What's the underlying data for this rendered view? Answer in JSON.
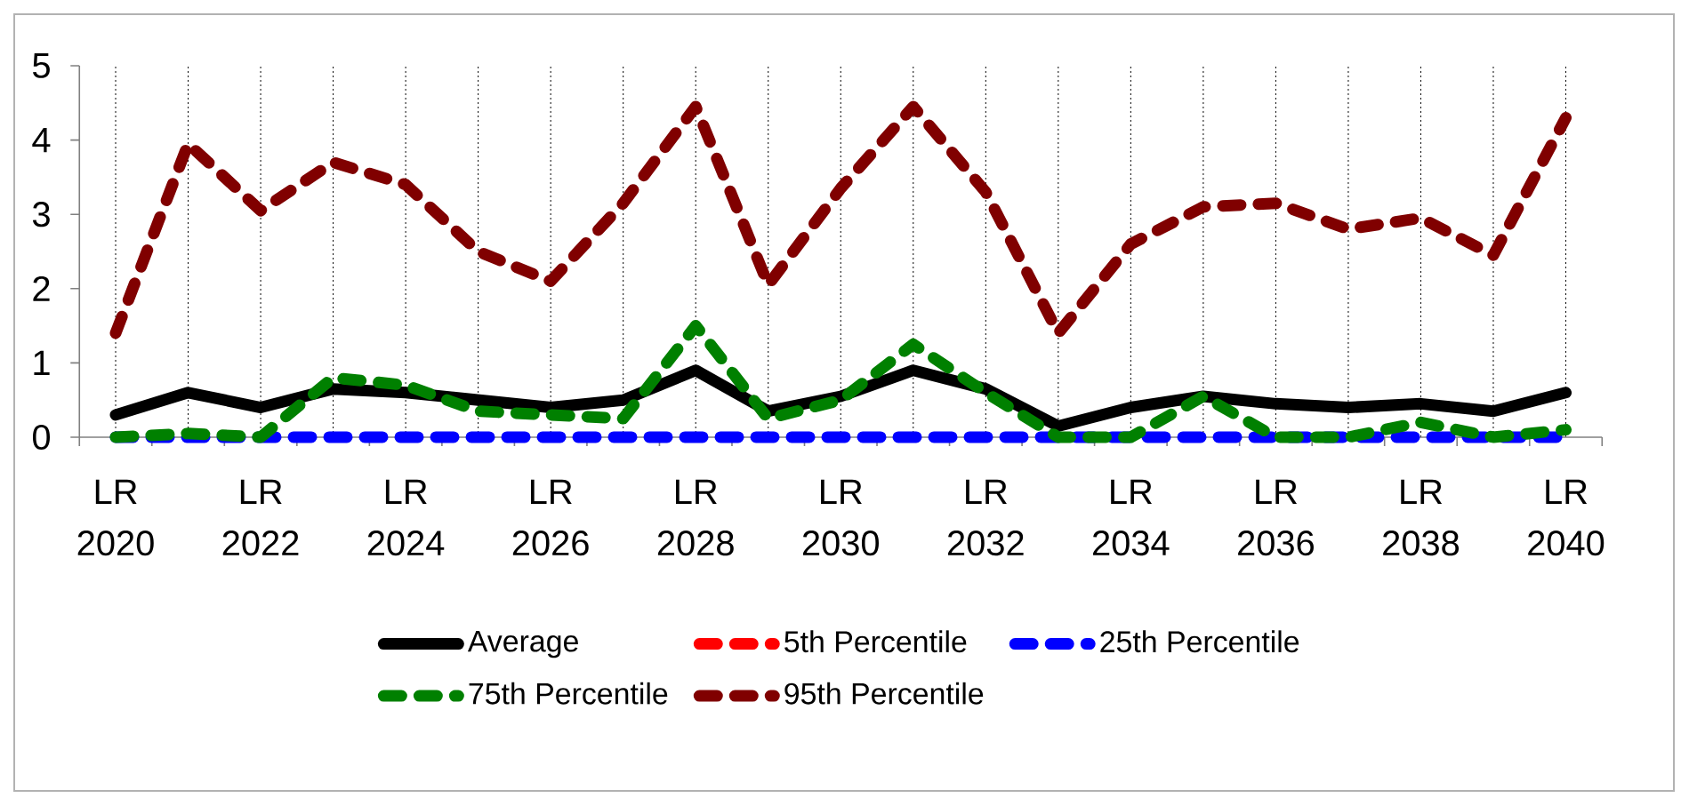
{
  "chart_data": {
    "type": "line",
    "categories": [
      "LR 2020",
      null,
      "LR 2022",
      null,
      "LR 2024",
      null,
      "LR 2026",
      null,
      "LR 2028",
      null,
      "LR 2030",
      null,
      "LR 2032",
      null,
      "LR 2034",
      null,
      "LR 2036",
      null,
      "LR 2038",
      null,
      "LR 2040"
    ],
    "ylim": [
      0,
      5
    ],
    "yticks": [
      0,
      1,
      2,
      3,
      4,
      5
    ],
    "grid": "x",
    "legend": "bottom",
    "marker": "none",
    "series": [
      {
        "name": "Average",
        "color": "#000000",
        "line_style": "solid",
        "values": [
          0.3,
          0.6,
          0.4,
          0.65,
          0.6,
          0.5,
          0.4,
          0.5,
          0.9,
          0.35,
          0.55,
          0.9,
          0.65,
          0.15,
          0.4,
          0.55,
          0.45,
          0.4,
          0.45,
          0.35,
          0.6
        ]
      },
      {
        "name": "5th Percentile",
        "color": "#ff0000",
        "line_style": "dashed",
        "values": [
          null,
          null,
          null,
          null,
          null,
          null,
          null,
          null,
          null,
          null,
          null,
          null,
          null,
          null,
          null,
          null,
          null,
          null,
          null,
          null,
          null
        ]
      },
      {
        "name": "25th Percentile",
        "color": "#0000ff",
        "line_style": "dashed",
        "values": [
          0,
          0,
          0,
          0,
          0,
          0,
          0,
          0,
          0,
          0,
          0,
          0,
          0,
          0,
          0,
          0,
          0,
          0,
          0,
          0,
          0
        ]
      },
      {
        "name": "75th Percentile",
        "color": "#008000",
        "line_style": "dashed",
        "values": [
          0,
          0.05,
          0,
          0.8,
          0.7,
          0.35,
          0.3,
          0.25,
          1.5,
          0.25,
          0.5,
          1.25,
          0.6,
          0,
          0,
          0.55,
          0,
          0,
          0.2,
          0,
          0.1
        ]
      },
      {
        "name": "95th Percentile",
        "color": "#800000",
        "line_style": "dashed",
        "values": [
          1.4,
          3.95,
          3.05,
          3.7,
          3.4,
          2.5,
          2.1,
          3.15,
          4.45,
          2.05,
          3.35,
          4.45,
          3.3,
          1.4,
          2.6,
          3.1,
          3.15,
          2.8,
          2.95,
          2.45,
          4.3
        ]
      }
    ]
  }
}
